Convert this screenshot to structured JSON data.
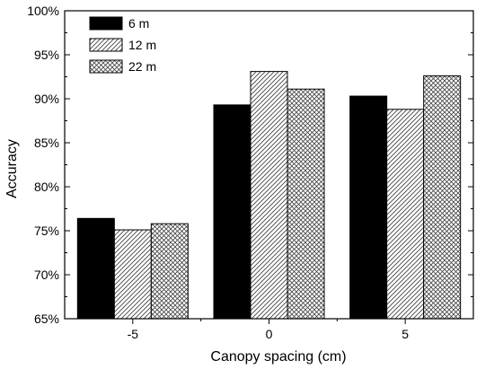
{
  "chart_data": {
    "type": "bar",
    "xlabel": "Canopy spacing (cm)",
    "ylabel": "Accuracy",
    "categories": [
      "-5",
      "0",
      "5"
    ],
    "ylim": [
      65,
      100
    ],
    "yticks": [
      65,
      70,
      75,
      80,
      85,
      90,
      95,
      100
    ],
    "ytick_labels": [
      "65%",
      "70%",
      "75%",
      "80%",
      "85%",
      "90%",
      "95%",
      "100%"
    ],
    "series": [
      {
        "name": "6 m",
        "values": [
          76.4,
          89.3,
          90.3
        ],
        "fill": "solid"
      },
      {
        "name": "12 m",
        "values": [
          75.1,
          93.1,
          88.8
        ],
        "fill": "diagonal"
      },
      {
        "name": "22 m",
        "values": [
          75.8,
          91.1,
          92.6
        ],
        "fill": "crosshatch"
      }
    ],
    "legend_position": "top-left",
    "grid": false,
    "colors": {
      "bar_fill": "#000000",
      "pattern_bg": "#ffffff",
      "axis": "#000000"
    }
  }
}
